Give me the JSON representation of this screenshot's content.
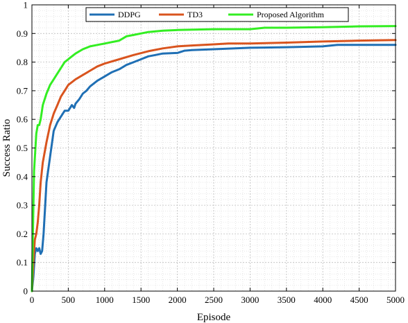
{
  "chart_data": {
    "type": "line",
    "title": "",
    "xlabel": "Episode",
    "ylabel": "Success Ratio",
    "xlim": [
      0,
      5000
    ],
    "ylim": [
      0,
      1
    ],
    "xticks": [
      0,
      500,
      1000,
      1500,
      2000,
      2500,
      3000,
      3500,
      4000,
      4500,
      5000
    ],
    "yticks": [
      0,
      0.1,
      0.2,
      0.3,
      0.4,
      0.5,
      0.6,
      0.7,
      0.8,
      0.9,
      1
    ],
    "grid": true,
    "minor_grid": true,
    "legend_position": "top-right",
    "series": [
      {
        "name": "DDPG",
        "color": "#1f6fb4",
        "x": [
          0,
          20,
          40,
          60,
          80,
          100,
          120,
          140,
          160,
          200,
          250,
          300,
          350,
          400,
          450,
          500,
          550,
          580,
          600,
          650,
          700,
          750,
          800,
          900,
          1000,
          1100,
          1200,
          1300,
          1400,
          1500,
          1600,
          1700,
          1800,
          2000,
          2100,
          2200,
          2500,
          2800,
          3000,
          3500,
          4000,
          4200,
          4500,
          5000
        ],
        "y": [
          0,
          0.05,
          0.13,
          0.15,
          0.14,
          0.15,
          0.13,
          0.14,
          0.2,
          0.38,
          0.47,
          0.56,
          0.59,
          0.61,
          0.63,
          0.63,
          0.65,
          0.64,
          0.655,
          0.67,
          0.69,
          0.7,
          0.715,
          0.735,
          0.75,
          0.765,
          0.775,
          0.79,
          0.8,
          0.81,
          0.82,
          0.825,
          0.83,
          0.832,
          0.84,
          0.842,
          0.845,
          0.848,
          0.85,
          0.852,
          0.855,
          0.86,
          0.86,
          0.86
        ]
      },
      {
        "name": "TD3",
        "color": "#d9541e",
        "x": [
          0,
          20,
          40,
          60,
          80,
          100,
          120,
          150,
          200,
          250,
          300,
          350,
          400,
          450,
          500,
          600,
          700,
          800,
          900,
          1000,
          1200,
          1400,
          1600,
          1800,
          2000,
          2200,
          2500,
          2700,
          3000,
          3200,
          3500,
          4000,
          4500,
          5000
        ],
        "y": [
          0,
          0.1,
          0.18,
          0.2,
          0.24,
          0.3,
          0.38,
          0.45,
          0.52,
          0.58,
          0.62,
          0.65,
          0.68,
          0.7,
          0.72,
          0.74,
          0.755,
          0.77,
          0.785,
          0.795,
          0.81,
          0.825,
          0.838,
          0.848,
          0.855,
          0.858,
          0.862,
          0.865,
          0.865,
          0.866,
          0.868,
          0.872,
          0.875,
          0.877
        ]
      },
      {
        "name": "Proposed Algorithm",
        "color": "#33ee22",
        "x": [
          0,
          10,
          30,
          60,
          80,
          100,
          120,
          150,
          200,
          250,
          300,
          350,
          400,
          450,
          500,
          550,
          600,
          700,
          800,
          900,
          1000,
          1200,
          1300,
          1400,
          1600,
          1800,
          2000,
          2500,
          3000,
          3200,
          3500,
          4000,
          4500,
          5000
        ],
        "y": [
          0,
          0.15,
          0.42,
          0.55,
          0.58,
          0.58,
          0.6,
          0.65,
          0.69,
          0.72,
          0.74,
          0.76,
          0.78,
          0.8,
          0.81,
          0.82,
          0.83,
          0.845,
          0.855,
          0.86,
          0.865,
          0.875,
          0.89,
          0.895,
          0.905,
          0.91,
          0.912,
          0.915,
          0.915,
          0.92,
          0.92,
          0.922,
          0.925,
          0.926
        ]
      }
    ]
  }
}
